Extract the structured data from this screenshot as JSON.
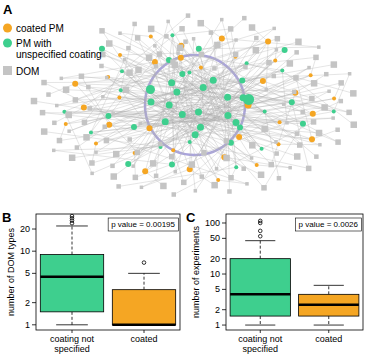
{
  "chart_data": [
    {
      "type": "network",
      "title": "A",
      "groups": [
        {
          "name": "coated PM",
          "color": "#f5a623",
          "marker": "circle",
          "count": 35
        },
        {
          "name": "PM with unspecified coating",
          "color": "#3ecf8e",
          "marker": "circle",
          "count": 45
        },
        {
          "name": "DOM",
          "color": "#c4c4c4",
          "marker": "square",
          "count": 150
        }
      ],
      "legend": "top-left"
    },
    {
      "type": "box",
      "title": "B",
      "ylabel": "number of DOM types",
      "categories": [
        "coating not specified",
        "coated"
      ],
      "colors": [
        "#3ecf8e",
        "#f5a623"
      ],
      "boxes": [
        {
          "min": 1,
          "q1": 1.5,
          "median": 4.5,
          "q3": 9,
          "max": 22,
          "outliers": [
            24,
            26,
            28,
            30
          ]
        },
        {
          "min": 1,
          "q1": 1,
          "median": 1,
          "q3": 3,
          "max": 5,
          "outliers": [
            7
          ]
        }
      ],
      "annotation": "p value = 0.00195",
      "log": "y",
      "ylim": [
        0.85,
        32
      ],
      "yticks": [
        1,
        2,
        5,
        10,
        20
      ]
    },
    {
      "type": "box",
      "title": "C",
      "ylabel": "number of experiments",
      "categories": [
        "coating not specified",
        "coated"
      ],
      "colors": [
        "#3ecf8e",
        "#f5a623"
      ],
      "boxes": [
        {
          "min": 1,
          "q1": 1.5,
          "median": 4,
          "q3": 20,
          "max": 45,
          "outliers": [
            55,
            70,
            100,
            110
          ]
        },
        {
          "min": 1,
          "q1": 1.5,
          "median": 2.5,
          "q3": 4,
          "max": 6,
          "outliers": []
        }
      ],
      "annotation": "p value = 0.0026",
      "log": "y",
      "ylim": [
        0.8,
        150
      ],
      "yticks": [
        1,
        2,
        5,
        10,
        20,
        50,
        100
      ]
    }
  ]
}
